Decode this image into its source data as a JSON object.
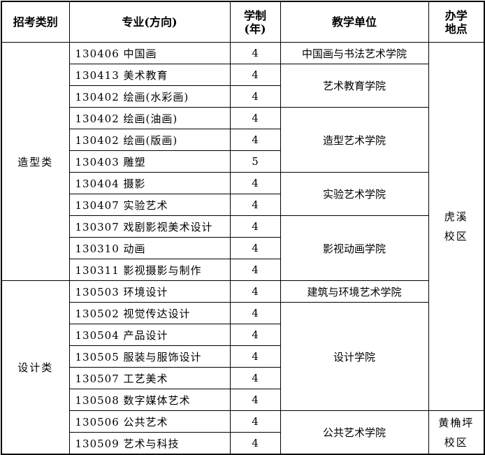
{
  "headers": {
    "category": "招考类别",
    "major": "专业(方向)",
    "years_line1": "学制",
    "years_line2": "(年)",
    "unit": "教学单位",
    "location_line1": "办学",
    "location_line2": "地点"
  },
  "categories": [
    "造型类",
    "设计类"
  ],
  "units": [
    "中国画与书法艺术学院",
    "艺术教育学院",
    "造型艺术学院",
    "实验艺术学院",
    "影视动画学院",
    "建筑与环境艺术学院",
    "设计学院",
    "公共艺术学院"
  ],
  "locations": [
    {
      "line1": "虎溪",
      "line2": "校区"
    },
    {
      "line1": "黄桷坪",
      "line2": "校区"
    }
  ],
  "rows": [
    {
      "major": "130406 中国画",
      "years": "4"
    },
    {
      "major": "130413 美术教育",
      "years": "4"
    },
    {
      "major": "130402 绘画(水彩画)",
      "years": "4"
    },
    {
      "major": "130402 绘画(油画)",
      "years": "4"
    },
    {
      "major": "130402 绘画(版画)",
      "years": "4"
    },
    {
      "major": "130403 雕塑",
      "years": "5"
    },
    {
      "major": "130404 摄影",
      "years": "4"
    },
    {
      "major": "130407 实验艺术",
      "years": "4"
    },
    {
      "major": "130307 戏剧影视美术设计",
      "years": "4"
    },
    {
      "major": "130310 动画",
      "years": "4"
    },
    {
      "major": "130311 影视摄影与制作",
      "years": "4"
    },
    {
      "major": "130503 环境设计",
      "years": "4"
    },
    {
      "major": "130502 视觉传达设计",
      "years": "4"
    },
    {
      "major": "130504 产品设计",
      "years": "4"
    },
    {
      "major": "130505 服装与服饰设计",
      "years": "4"
    },
    {
      "major": "130507 工艺美术",
      "years": "4"
    },
    {
      "major": "130508 数字媒体艺术",
      "years": "4"
    },
    {
      "major": "130506 公共艺术",
      "years": "4"
    },
    {
      "major": "130509 艺术与科技",
      "years": "4"
    }
  ]
}
